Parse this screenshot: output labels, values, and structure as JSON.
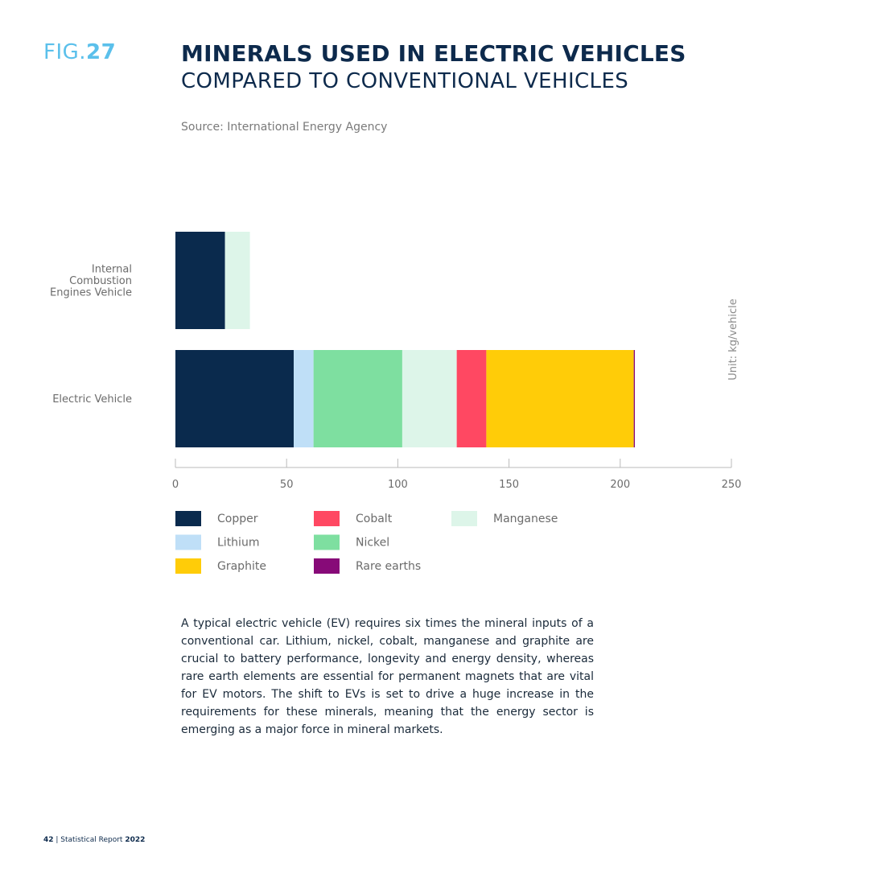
{
  "figure": {
    "prefix": "FIG.",
    "number": "27"
  },
  "title": {
    "line1": "MINERALS USED IN ELECTRIC VEHICLES",
    "line2": "COMPARED TO CONVENTIONAL VEHICLES"
  },
  "source": "Source: International Energy Agency",
  "chart_data": {
    "type": "bar",
    "orientation": "horizontal",
    "stacked": true,
    "categories": [
      [
        "Internal",
        "Combustion",
        "Engines Vehicle"
      ],
      [
        "Electric Vehicle"
      ]
    ],
    "series": [
      {
        "name": "Copper",
        "color": "#0a2a4d",
        "values": [
          22.3,
          53.2
        ]
      },
      {
        "name": "Lithium",
        "color": "#bfdff7",
        "values": [
          0,
          8.9
        ]
      },
      {
        "name": "Nickel",
        "color": "#7edfa0",
        "values": [
          0,
          39.9
        ]
      },
      {
        "name": "Manganese",
        "color": "#ddf5e9",
        "values": [
          11.2,
          24.5
        ]
      },
      {
        "name": "Cobalt",
        "color": "#ff4862",
        "values": [
          0,
          13.3
        ]
      },
      {
        "name": "Graphite",
        "color": "#ffcc08",
        "values": [
          0,
          66.3
        ]
      },
      {
        "name": "Rare earths",
        "color": "#870a78",
        "values": [
          0,
          0.5
        ]
      }
    ],
    "xlim": [
      0,
      250
    ],
    "xticks": [
      0,
      50,
      100,
      150,
      200,
      250
    ],
    "unit_label": "Unit: kg/vehicle",
    "legend_placement": "bottom",
    "legend_order": [
      "Copper",
      "Cobalt",
      "Manganese",
      "Lithium",
      "Nickel",
      "Graphite",
      "Rare earths"
    ],
    "grid": false
  },
  "body_text": "A typical electric vehicle (EV) requires six times the mineral inputs of a conventional car. Lithium, nickel, cobalt, manganese and graphite are crucial to battery performance, longevity and energy density, whereas rare earth elements are essential for permanent magnets that are vital for EV motors. The shift to EVs is set to drive a huge increase in the requirements for these minerals, meaning that the energy sector is emerging as a major force in mineral markets.",
  "footer": {
    "page": "42",
    "separator": " | Statistical Report ",
    "year": "2022"
  }
}
